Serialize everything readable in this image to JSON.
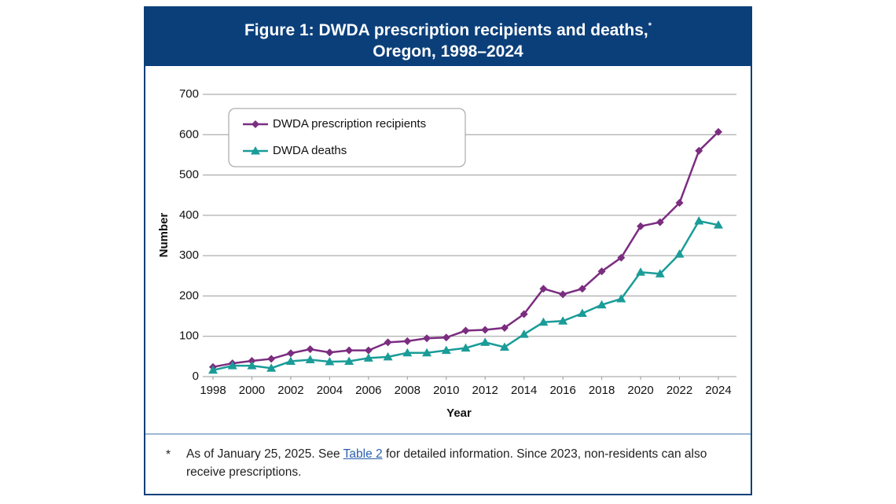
{
  "chart_data": {
    "type": "line",
    "title": "Figure 1: DWDA prescription recipients and deaths,",
    "title_mark": "*",
    "title_end": "Oregon, 1998–2024",
    "x_label": "Year",
    "y_label": "Number",
    "x": [
      1998,
      1999,
      2000,
      2001,
      2002,
      2003,
      2004,
      2005,
      2006,
      2007,
      2008,
      2009,
      2010,
      2011,
      2012,
      2013,
      2014,
      2015,
      2016,
      2017,
      2018,
      2019,
      2020,
      2021,
      2022,
      2023,
      2024
    ],
    "series": [
      {
        "name": "DWDA prescription recipients",
        "color": "#7b2d80",
        "marker": "diamond",
        "values": [
          24,
          33,
          39,
          44,
          58,
          68,
          60,
          65,
          65,
          85,
          88,
          95,
          97,
          114,
          116,
          121,
          155,
          218,
          204,
          218,
          261,
          295,
          373,
          383,
          431,
          560,
          607
        ]
      },
      {
        "name": "DWDA deaths",
        "color": "#1a9c98",
        "marker": "triangle",
        "values": [
          16,
          27,
          27,
          21,
          38,
          42,
          37,
          38,
          46,
          49,
          59,
          59,
          65,
          71,
          85,
          73,
          105,
          135,
          138,
          157,
          178,
          193,
          259,
          255,
          304,
          386,
          376
        ]
      }
    ],
    "xlim": [
      1998,
      2024
    ],
    "xticks": [
      1998,
      2000,
      2002,
      2004,
      2006,
      2008,
      2010,
      2012,
      2014,
      2016,
      2018,
      2020,
      2022,
      2024
    ],
    "ylim": [
      0,
      700
    ],
    "yticks": [
      0,
      100,
      200,
      300,
      400,
      500,
      600,
      700
    ],
    "grid": true,
    "legend": "upper left"
  },
  "footnote": {
    "mark": "*",
    "before": "As of January 25, 2025. See",
    "link": "Table 2",
    "after": "for detailed information. Since 2023, non-residents can also receive prescriptions."
  }
}
